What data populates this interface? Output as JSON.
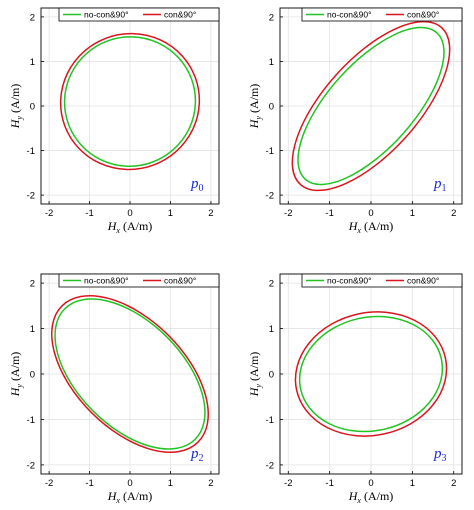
{
  "chart_data": [
    {
      "type": "line",
      "panel_label": "p0",
      "xlabel": "Hx (A/m)",
      "ylabel": "Hy (A/m)",
      "xlim": [
        -2.2,
        2.2
      ],
      "ylim": [
        -2.2,
        2.2
      ],
      "xticks": [
        "-2",
        "-1",
        "0",
        "1",
        "2"
      ],
      "yticks": [
        "2",
        "1",
        "0",
        "-1",
        "-2"
      ],
      "grid": true,
      "legend": "top-right",
      "series": [
        {
          "name": "no-con&90°",
          "color": "#22c322",
          "shape": "ellipse",
          "center": [
            0.0,
            0.1
          ],
          "semi_major": 1.62,
          "semi_minor": 1.45,
          "tilt_deg": -20
        },
        {
          "name": "con&90°",
          "color": "#d9161e",
          "shape": "ellipse",
          "center": [
            0.0,
            0.1
          ],
          "semi_major": 1.72,
          "semi_minor": 1.52,
          "tilt_deg": -20
        }
      ]
    },
    {
      "type": "line",
      "panel_label": "p1",
      "xlabel": "Hx (A/m)",
      "ylabel": "Hy (A/m)",
      "xlim": [
        -2.2,
        2.2
      ],
      "ylim": [
        -2.2,
        2.2
      ],
      "xticks": [
        "-2",
        "-1",
        "0",
        "1",
        "2"
      ],
      "yticks": [
        "2",
        "1",
        "0",
        "-1",
        "-2"
      ],
      "grid": true,
      "legend": "top-right",
      "series": [
        {
          "name": "no-con&90°",
          "color": "#22c322",
          "shape": "ellipse",
          "center": [
            0.0,
            0.0
          ],
          "semi_major": 2.38,
          "semi_minor": 0.95,
          "tilt_deg": -48
        },
        {
          "name": "con&90°",
          "color": "#d9161e",
          "shape": "ellipse",
          "center": [
            0.0,
            0.0
          ],
          "semi_major": 2.55,
          "semi_minor": 1.05,
          "tilt_deg": -48
        }
      ]
    },
    {
      "type": "line",
      "panel_label": "p2",
      "xlabel": "Hx (A/m)",
      "ylabel": "Hy (A/m)",
      "xlim": [
        -2.2,
        2.2
      ],
      "ylim": [
        -2.2,
        2.2
      ],
      "xticks": [
        "-2",
        "-1",
        "0",
        "1",
        "2"
      ],
      "yticks": [
        "2",
        "1",
        "0",
        "-1",
        "-2"
      ],
      "grid": true,
      "legend": "top-right",
      "series": [
        {
          "name": "no-con&90°",
          "color": "#22c322",
          "shape": "ellipse",
          "center": [
            0.0,
            0.0
          ],
          "semi_major": 2.28,
          "semi_minor": 1.15,
          "tilt_deg": 45
        },
        {
          "name": "con&90°",
          "color": "#d9161e",
          "shape": "ellipse",
          "center": [
            0.0,
            0.0
          ],
          "semi_major": 2.38,
          "semi_minor": 1.2,
          "tilt_deg": 45
        }
      ]
    },
    {
      "type": "line",
      "panel_label": "p3",
      "xlabel": "Hx (A/m)",
      "ylabel": "Hy (A/m)",
      "xlim": [
        -2.2,
        2.2
      ],
      "ylim": [
        -2.2,
        2.2
      ],
      "xticks": [
        "-2",
        "-1",
        "0",
        "1",
        "2"
      ],
      "yticks": [
        "2",
        "1",
        "0",
        "-1",
        "-2"
      ],
      "grid": true,
      "legend": "top-right",
      "series": [
        {
          "name": "no-con&90°",
          "color": "#22c322",
          "shape": "ellipse",
          "center": [
            0.0,
            0.0
          ],
          "semi_major": 1.74,
          "semi_minor": 1.25,
          "tilt_deg": -12
        },
        {
          "name": "con&90°",
          "color": "#d9161e",
          "shape": "ellipse",
          "center": [
            0.0,
            0.0
          ],
          "semi_major": 1.84,
          "semi_minor": 1.35,
          "tilt_deg": -12
        }
      ]
    }
  ]
}
